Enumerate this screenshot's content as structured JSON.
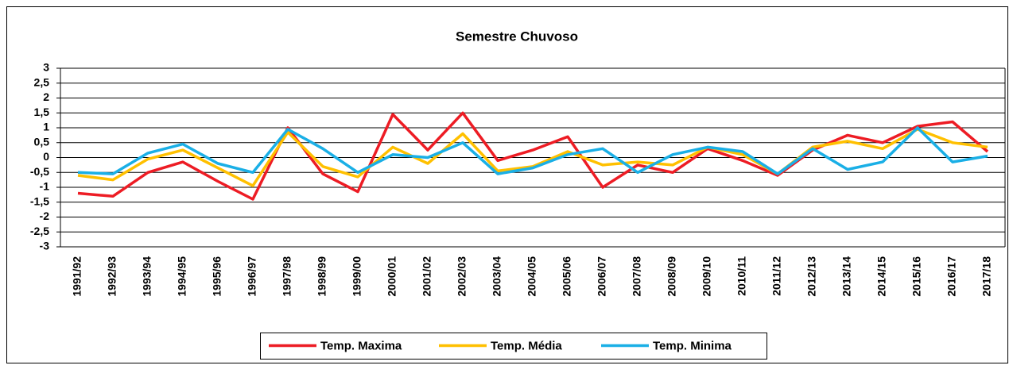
{
  "chart_data": {
    "type": "line",
    "title": "Semestre Chuvoso",
    "categories": [
      "1991/92",
      "1992/93",
      "1993/94",
      "1994/95",
      "1995/96",
      "1996/97",
      "1997/98",
      "1998/99",
      "1999/00",
      "2000/01",
      "2001/02",
      "2002/03",
      "2003/04",
      "2004/05",
      "2005/06",
      "2006/07",
      "2007/08",
      "2008/09",
      "2009/10",
      "2010/11",
      "2011/12",
      "2012/13",
      "2013/14",
      "2014/15",
      "2015/16",
      "2016/17",
      "2017/18"
    ],
    "series": [
      {
        "name": "Temp. Maxima",
        "color": "#ed1c24",
        "values": [
          -1.2,
          -1.3,
          -0.5,
          -0.15,
          -0.8,
          -1.4,
          1.0,
          -0.55,
          -1.15,
          1.45,
          0.25,
          1.5,
          -0.1,
          0.25,
          0.7,
          -1.0,
          -0.25,
          -0.5,
          0.3,
          -0.1,
          -0.6,
          0.25,
          0.75,
          0.5,
          1.05,
          1.2,
          0.2
        ]
      },
      {
        "name": "Temp. Média",
        "color": "#ffc000",
        "values": [
          -0.6,
          -0.75,
          -0.05,
          0.25,
          -0.35,
          -0.95,
          0.85,
          -0.3,
          -0.65,
          0.35,
          -0.2,
          0.8,
          -0.45,
          -0.3,
          0.2,
          -0.25,
          -0.15,
          -0.25,
          0.35,
          0.1,
          -0.55,
          0.35,
          0.55,
          0.3,
          0.95,
          0.5,
          0.35
        ]
      },
      {
        "name": "Temp. Minima",
        "color": "#1aafe6",
        "values": [
          -0.5,
          -0.55,
          0.15,
          0.45,
          -0.2,
          -0.5,
          0.95,
          0.3,
          -0.5,
          0.1,
          0.0,
          0.5,
          -0.55,
          -0.35,
          0.1,
          0.3,
          -0.5,
          0.1,
          0.35,
          0.2,
          -0.55,
          0.3,
          -0.4,
          -0.15,
          1.0,
          -0.15,
          0.05
        ]
      }
    ],
    "ylim": [
      -3,
      3
    ],
    "yticks": [
      -3,
      {
        "value": -2.5,
        "label": "-2,5"
      },
      -2,
      {
        "value": -1.5,
        "label": "-1,5"
      },
      -1,
      {
        "value": -0.5,
        "label": "-0,5"
      },
      0,
      {
        "value": 0.5,
        "label": "0,5"
      },
      1,
      {
        "value": 1.5,
        "label": "1,5"
      },
      2,
      {
        "value": 2.5,
        "label": "2,5"
      },
      3
    ],
    "grid": true,
    "legend": "bottom"
  }
}
